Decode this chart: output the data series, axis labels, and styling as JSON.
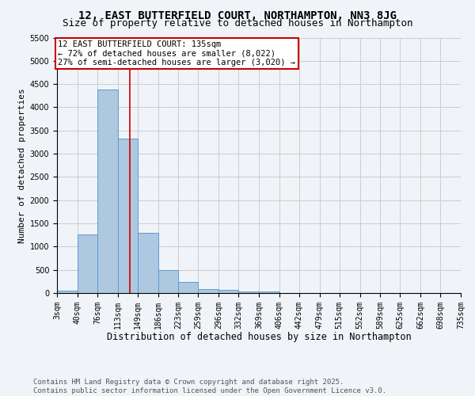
{
  "title": "12, EAST BUTTERFIELD COURT, NORTHAMPTON, NN3 8JG",
  "subtitle": "Size of property relative to detached houses in Northampton",
  "xlabel": "Distribution of detached houses by size in Northampton",
  "ylabel": "Number of detached properties",
  "bin_edges": [
    3,
    40,
    76,
    113,
    149,
    186,
    223,
    259,
    296,
    332,
    369,
    406,
    442,
    479,
    515,
    552,
    589,
    625,
    662,
    698,
    735
  ],
  "bar_heights": [
    50,
    1270,
    4380,
    3330,
    1290,
    500,
    240,
    90,
    60,
    40,
    30,
    0,
    0,
    0,
    0,
    0,
    0,
    0,
    0,
    0
  ],
  "bar_color": "#aec8e0",
  "bar_edge_color": "#5b9bd5",
  "property_size": 135,
  "red_line_color": "#cc0000",
  "annotation_text": "12 EAST BUTTERFIELD COURT: 135sqm\n← 72% of detached houses are smaller (8,022)\n27% of semi-detached houses are larger (3,020) →",
  "annotation_box_color": "#ffffff",
  "annotation_box_edge_color": "#cc0000",
  "ylim": [
    0,
    5500
  ],
  "yticks": [
    0,
    500,
    1000,
    1500,
    2000,
    2500,
    3000,
    3500,
    4000,
    4500,
    5000,
    5500
  ],
  "grid_color": "#cccccc",
  "background_color": "#f0f4f8",
  "footer_line1": "Contains HM Land Registry data © Crown copyright and database right 2025.",
  "footer_line2": "Contains public sector information licensed under the Open Government Licence v3.0.",
  "title_fontsize": 10,
  "subtitle_fontsize": 9,
  "xlabel_fontsize": 8.5,
  "ylabel_fontsize": 8,
  "tick_fontsize": 7,
  "annotation_fontsize": 7.5,
  "footer_fontsize": 6.5
}
